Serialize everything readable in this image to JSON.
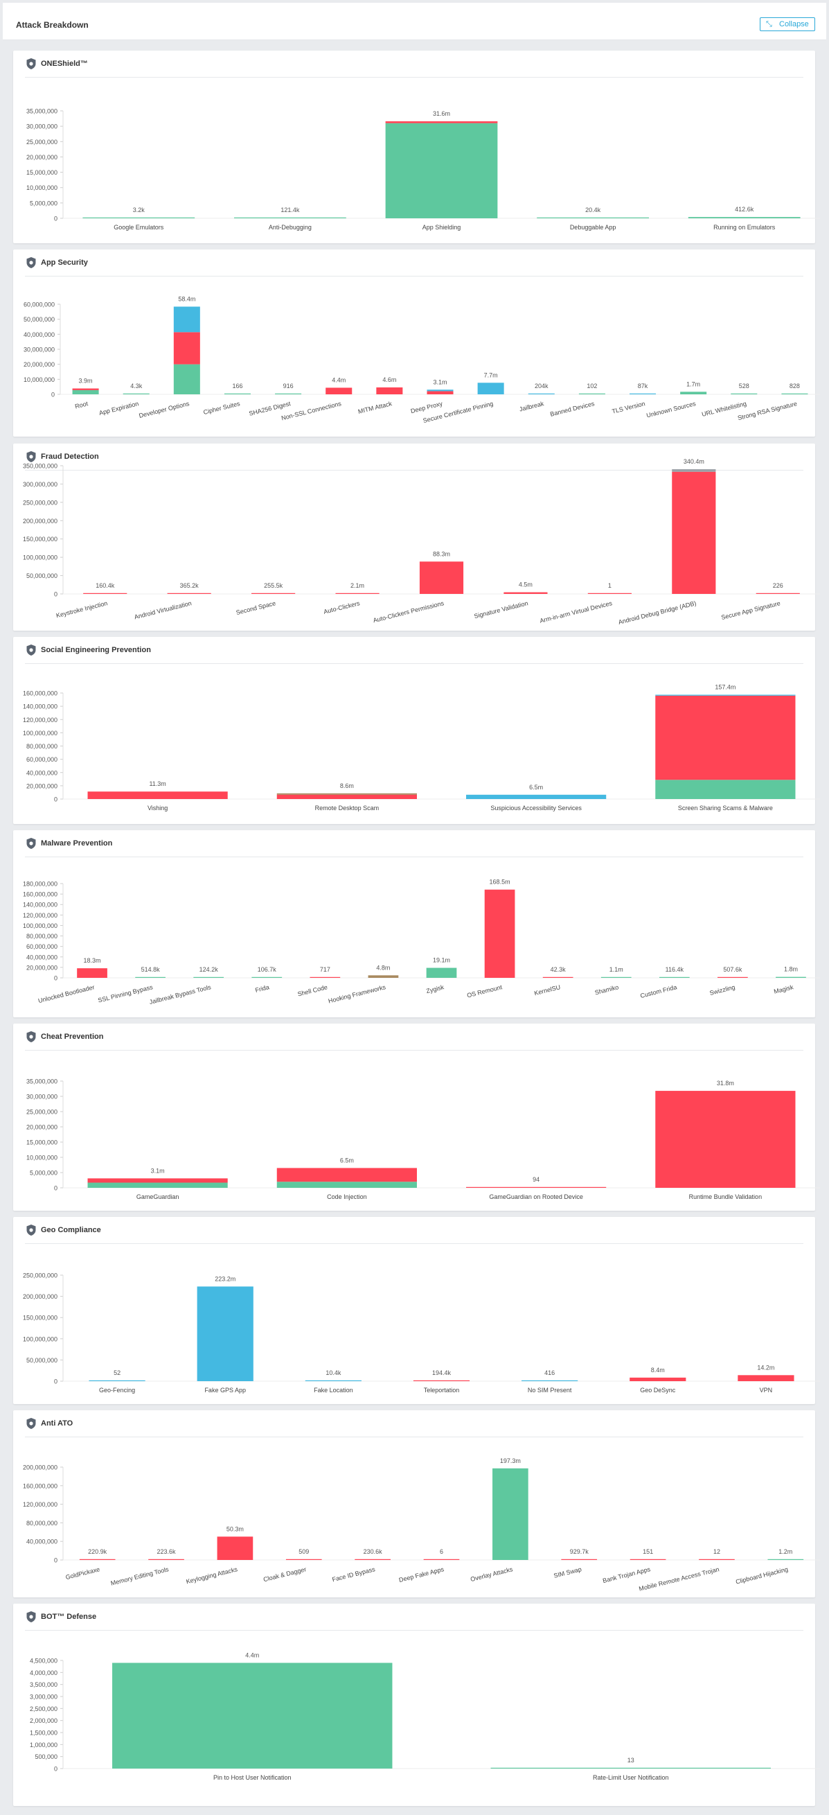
{
  "page": {
    "title": "Attack Breakdown",
    "collapse_label": "Collapse"
  },
  "colors": {
    "green": "#5ec89e",
    "red": "#ff4455",
    "blue": "#44b9e1",
    "brown": "#a98a60",
    "grey": "#9aa0a6"
  },
  "chart_data": [
    {
      "type": "bar",
      "title": "ONEShield™",
      "ylim": [
        0,
        35000000
      ],
      "yticks": [
        "35,000,000",
        "30,000,000",
        "25,000,000",
        "20,000,000",
        "15,000,000",
        "10,000,000",
        "5,000,000",
        "0"
      ],
      "categories": [
        "Google Emulators",
        "Anti-Debugging",
        "App Shielding",
        "Debuggable App",
        "Running on Emulators"
      ],
      "value_labels": [
        "3.2k",
        "121.4k",
        "31.6m",
        "20.4k",
        "412.6k"
      ],
      "values": [
        3200,
        121400,
        31600000,
        20400,
        412600
      ],
      "series": [
        {
          "name": "green",
          "values": [
            3200,
            121400,
            31000000,
            20400,
            412600
          ]
        },
        {
          "name": "red",
          "values": [
            0,
            0,
            600000,
            0,
            0
          ]
        }
      ]
    },
    {
      "type": "bar",
      "title": "App Security",
      "ylim": [
        0,
        60000000
      ],
      "yticks": [
        "60,000,000",
        "50,000,000",
        "40,000,000",
        "30,000,000",
        "20,000,000",
        "10,000,000",
        "0"
      ],
      "categories": [
        "Root",
        "App Expiration",
        "Developer Options",
        "Cipher Suites",
        "SHA256 Digest",
        "Non-SSL Connections",
        "MITM Attack",
        "Deep Proxy",
        "Secure Certificate Pinning",
        "Jailbreak",
        "Banned Devices",
        "TLS Version",
        "Unknown Sources",
        "URL Whitelisting",
        "Strong RSA Signature"
      ],
      "value_labels": [
        "3.9m",
        "4.3k",
        "58.4m",
        "166",
        "916",
        "4.4m",
        "4.6m",
        "3.1m",
        "7.7m",
        "204k",
        "102",
        "87k",
        "1.7m",
        "528",
        "828"
      ],
      "values": [
        3900000,
        4300,
        58400000,
        166,
        916,
        4400000,
        4600000,
        3100000,
        7700000,
        204000,
        102,
        87000,
        1700000,
        528,
        828
      ],
      "series": [
        {
          "name": "green",
          "values": [
            2800000,
            4300,
            20000000,
            166,
            916,
            0,
            0,
            0,
            0,
            0,
            102,
            0,
            1700000,
            528,
            828
          ]
        },
        {
          "name": "red",
          "values": [
            1100000,
            0,
            21400000,
            0,
            0,
            4400000,
            4600000,
            2100000,
            0,
            0,
            0,
            0,
            0,
            0,
            0
          ]
        },
        {
          "name": "blue",
          "values": [
            0,
            0,
            17000000,
            0,
            0,
            0,
            0,
            1000000,
            7700000,
            204000,
            0,
            87000,
            0,
            0,
            0
          ]
        }
      ]
    },
    {
      "type": "bar",
      "title": "Fraud Detection",
      "ylim": [
        0,
        350000000
      ],
      "yticks": [
        "350,000,000",
        "300,000,000",
        "250,000,000",
        "200,000,000",
        "150,000,000",
        "100,000,000",
        "50,000,000",
        "0"
      ],
      "categories": [
        "Keystroke Injection",
        "Android Virtualization",
        "Second Space",
        "Auto-Clickers",
        "Auto-Clickers Permissions",
        "Signature Validation",
        "Arm-in-arm Virtual Devices",
        "Android Debug Bridge (ADB)",
        "Secure App Signature"
      ],
      "value_labels": [
        "160.4k",
        "365.2k",
        "255.5k",
        "2.1m",
        "88.3m",
        "4.5m",
        "1",
        "340.4m",
        "226"
      ],
      "values": [
        160400,
        365200,
        255500,
        2100000,
        88300000,
        4500000,
        1,
        340400000,
        226
      ],
      "series": [
        {
          "name": "red",
          "values": [
            160400,
            365200,
            255500,
            2100000,
            88300000,
            4500000,
            1,
            333400000,
            226
          ]
        },
        {
          "name": "grey",
          "values": [
            0,
            0,
            0,
            0,
            0,
            0,
            0,
            7000000,
            0
          ]
        }
      ]
    },
    {
      "type": "bar",
      "title": "Social Engineering Prevention",
      "ylim": [
        0,
        160000000
      ],
      "yticks": [
        "160,000,000",
        "140,000,000",
        "120,000,000",
        "100,000,000",
        "80,000,000",
        "60,000,000",
        "40,000,000",
        "20,000,000",
        "0"
      ],
      "categories": [
        "Vishing",
        "Remote Desktop Scam",
        "Suspicious Accessibility Services",
        "Screen Sharing Scams & Malware"
      ],
      "value_labels": [
        "11.3m",
        "8.6m",
        "6.5m",
        "157.4m"
      ],
      "values": [
        11300000,
        8600000,
        6500000,
        157400000
      ],
      "series": [
        {
          "name": "green",
          "values": [
            0,
            0,
            0,
            29000000
          ]
        },
        {
          "name": "red",
          "values": [
            11300000,
            6600000,
            0,
            127000000
          ]
        },
        {
          "name": "brown",
          "values": [
            0,
            2000000,
            0,
            0
          ]
        },
        {
          "name": "blue",
          "values": [
            0,
            0,
            6500000,
            1400000
          ]
        }
      ]
    },
    {
      "type": "bar",
      "title": "Malware Prevention",
      "ylim": [
        0,
        180000000
      ],
      "yticks": [
        "180,000,000",
        "160,000,000",
        "140,000,000",
        "120,000,000",
        "100,000,000",
        "80,000,000",
        "60,000,000",
        "40,000,000",
        "20,000,000",
        "0"
      ],
      "categories": [
        "Unlocked Bootloader",
        "SSL Pinning Bypass",
        "Jailbreak Bypass Tools",
        "Frida",
        "Shell Code",
        "Hooking Frameworks",
        "Zygisk",
        "OS Remount",
        "KernelSU",
        "Shamiko",
        "Custom Frida",
        "Swizzling",
        "Magisk"
      ],
      "value_labels": [
        "18.3m",
        "514.8k",
        "124.2k",
        "106.7k",
        "717",
        "4.8m",
        "19.1m",
        "168.5m",
        "42.3k",
        "1.1m",
        "116.4k",
        "507.6k",
        "1.8m"
      ],
      "values": [
        18300000,
        514800,
        124200,
        106700,
        717,
        4800000,
        19100000,
        168500000,
        42300,
        1100000,
        116400,
        507600,
        1800000
      ],
      "series": [
        {
          "name": "red",
          "values": [
            18300000,
            0,
            0,
            0,
            717,
            0,
            0,
            168500000,
            42300,
            0,
            0,
            507600,
            0
          ]
        },
        {
          "name": "green",
          "values": [
            0,
            514800,
            124200,
            106700,
            0,
            0,
            19100000,
            0,
            0,
            1100000,
            116400,
            0,
            1800000
          ]
        },
        {
          "name": "brown",
          "values": [
            0,
            0,
            0,
            0,
            0,
            4800000,
            0,
            0,
            0,
            0,
            0,
            0,
            0
          ]
        }
      ]
    },
    {
      "type": "bar",
      "title": "Cheat Prevention",
      "ylim": [
        0,
        35000000
      ],
      "yticks": [
        "35,000,000",
        "30,000,000",
        "25,000,000",
        "20,000,000",
        "15,000,000",
        "10,000,000",
        "5,000,000",
        "0"
      ],
      "categories": [
        "GameGuardian",
        "Code Injection",
        "GameGuardian on Rooted Device",
        "Runtime Bundle Validation"
      ],
      "value_labels": [
        "3.1m",
        "6.5m",
        "94",
        "31.8m"
      ],
      "values": [
        3100000,
        6500000,
        94,
        31800000
      ],
      "series": [
        {
          "name": "green",
          "values": [
            1700000,
            2000000,
            0,
            0
          ]
        },
        {
          "name": "red",
          "values": [
            1400000,
            4500000,
            94,
            31800000
          ]
        }
      ]
    },
    {
      "type": "bar",
      "title": "Geo Compliance",
      "ylim": [
        0,
        250000000
      ],
      "yticks": [
        "250,000,000",
        "200,000,000",
        "150,000,000",
        "100,000,000",
        "50,000,000",
        "0"
      ],
      "categories": [
        "Geo-Fencing",
        "Fake GPS App",
        "Fake Location",
        "Teleportation",
        "No SIM Present",
        "Geo DeSync",
        "VPN"
      ],
      "value_labels": [
        "52",
        "223.2m",
        "10.4k",
        "194.4k",
        "416",
        "8.4m",
        "14.2m"
      ],
      "values": [
        52,
        223200000,
        10400,
        194400,
        416,
        8400000,
        14200000
      ],
      "series": [
        {
          "name": "blue",
          "values": [
            52,
            223200000,
            10400,
            0,
            416,
            0,
            0
          ]
        },
        {
          "name": "red",
          "values": [
            0,
            0,
            0,
            194400,
            0,
            8400000,
            14200000
          ]
        }
      ]
    },
    {
      "type": "bar",
      "title": "Anti ATO",
      "ylim": [
        0,
        200000000
      ],
      "yticks": [
        "200,000,000",
        "160,000,000",
        "120,000,000",
        "80,000,000",
        "40,000,000",
        "0"
      ],
      "categories": [
        "GoldPickaxe",
        "Memory Editing Tools",
        "Keylogging Attacks",
        "Cloak & Dagger",
        "Face ID Bypass",
        "Deep Fake Apps",
        "Overlay Attacks",
        "SIM Swap",
        "Bank Trojan Apps",
        "Mobile Remote Access Trojan",
        "Clipboard Hijacking"
      ],
      "value_labels": [
        "220.9k",
        "223.6k",
        "50.3m",
        "509",
        "230.6k",
        "6",
        "197.3m",
        "929.7k",
        "151",
        "12",
        "1.2m"
      ],
      "values": [
        220900,
        223600,
        50300000,
        509,
        230600,
        6,
        197300000,
        929700,
        151,
        12,
        1200000
      ],
      "series": [
        {
          "name": "red",
          "values": [
            220900,
            223600,
            50300000,
            509,
            230600,
            6,
            0,
            929700,
            151,
            12,
            0
          ]
        },
        {
          "name": "green",
          "values": [
            0,
            0,
            0,
            0,
            0,
            0,
            197300000,
            0,
            0,
            0,
            1200000
          ]
        }
      ]
    },
    {
      "type": "bar",
      "title": "BOT™ Defense",
      "ylim": [
        0,
        4500000
      ],
      "yticks": [
        "4,500,000",
        "4,000,000",
        "3,500,000",
        "3,000,000",
        "2,500,000",
        "2,000,000",
        "1,500,000",
        "1,000,000",
        "500,000",
        "0"
      ],
      "categories": [
        "Pin to Host User Notification",
        "Rate-Limit User Notification"
      ],
      "value_labels": [
        "4.4m",
        "13"
      ],
      "values": [
        4400000,
        13
      ],
      "series": [
        {
          "name": "green",
          "values": [
            4400000,
            13
          ]
        }
      ]
    }
  ]
}
